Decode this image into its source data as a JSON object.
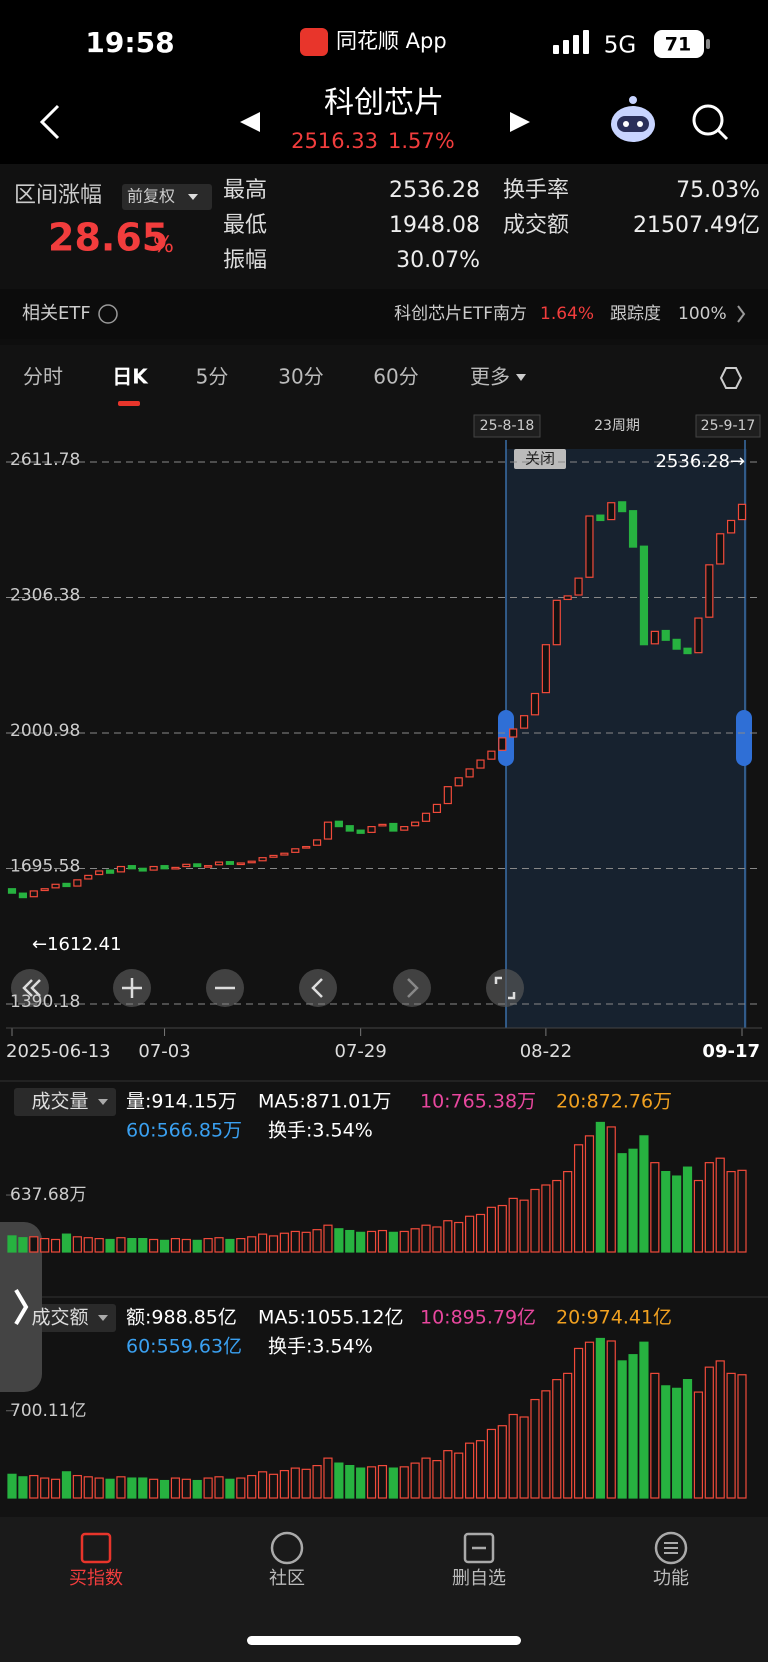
{
  "status": {
    "time": "19:58",
    "app": "同花顺 App",
    "network": "5G",
    "battery": "71"
  },
  "header": {
    "title": "科创芯片",
    "price": "2516.33",
    "change": "1.57%"
  },
  "stats": {
    "range_label": "区间涨幅",
    "adjust": "前复权",
    "range_value": "28.65",
    "range_unit": "%",
    "items": [
      {
        "label": "最高",
        "value": "2536.28"
      },
      {
        "label": "最低",
        "value": "1948.08"
      },
      {
        "label": "振幅",
        "value": "30.07%"
      },
      {
        "label": "换手率",
        "value": "75.03%"
      },
      {
        "label": "成交额",
        "value": "21507.49亿"
      }
    ]
  },
  "etf": {
    "label": "相关ETF",
    "name": "科创芯片ETF南方",
    "change": "1.64%",
    "track_label": "跟踪度",
    "track": "100%"
  },
  "tabs": [
    "分时",
    "日K",
    "5分",
    "30分",
    "60分",
    "更多"
  ],
  "range": {
    "start": "25-8-18",
    "period": "23周期",
    "end": "25-9-17",
    "close": "关闭"
  },
  "nav": [
    "买指数",
    "社区",
    "删自选",
    "功能"
  ],
  "chart_data": [
    {
      "type": "candlestick",
      "up_color": "#f04a3a",
      "down_color": "#27b240",
      "categories": [
        "2025-06-13",
        null,
        null,
        null,
        null,
        null,
        null,
        null,
        null,
        null,
        null,
        null,
        null,
        null,
        "07-03",
        null,
        null,
        null,
        null,
        null,
        null,
        null,
        null,
        null,
        null,
        null,
        null,
        null,
        null,
        null,
        null,
        null,
        "07-29",
        null,
        null,
        null,
        null,
        null,
        null,
        null,
        null,
        null,
        null,
        null,
        null,
        null,
        null,
        null,
        null,
        "08-22",
        null,
        null,
        null,
        null,
        null,
        null,
        null,
        null,
        null,
        null,
        null,
        null,
        null,
        null,
        null,
        null,
        null,
        "09-17"
      ],
      "open": [
        1650,
        1640,
        1632,
        1646,
        1652,
        1662,
        1656,
        1672,
        1682,
        1692,
        1688,
        1702,
        1696,
        1692,
        1702,
        1696,
        1700,
        1706,
        1701,
        1704,
        1711,
        1706,
        1709,
        1713,
        1721,
        1726,
        1732,
        1742,
        1748,
        1762,
        1802,
        1792,
        1782,
        1777,
        1792,
        1797,
        1782,
        1792,
        1802,
        1822,
        1842,
        1882,
        1902,
        1922,
        1942,
        1962,
        1992,
        2012,
        2042,
        2092,
        2200,
        2302,
        2312,
        2352,
        2492,
        2482,
        2522,
        2502,
        2422,
        2202,
        2232,
        2212,
        2192,
        2182,
        2262,
        2382,
        2452,
        2482
      ],
      "close": [
        1640,
        1630,
        1645,
        1650,
        1660,
        1655,
        1670,
        1680,
        1690,
        1685,
        1700,
        1695,
        1690,
        1700,
        1695,
        1698,
        1705,
        1700,
        1702,
        1710,
        1705,
        1708,
        1712,
        1720,
        1725,
        1730,
        1740,
        1745,
        1760,
        1800,
        1790,
        1780,
        1775,
        1790,
        1795,
        1780,
        1790,
        1800,
        1820,
        1840,
        1880,
        1900,
        1920,
        1940,
        1960,
        1990,
        2010,
        2040,
        2090,
        2200,
        2300,
        2310,
        2350,
        2490,
        2480,
        2520,
        2500,
        2420,
        2200,
        2230,
        2210,
        2190,
        2180,
        2260,
        2380,
        2450,
        2480,
        2516.33
      ],
      "ylim": [
        1390.18,
        2611.78
      ],
      "yticks": [
        2611.78,
        2306.38,
        2000.98,
        1695.58,
        1390.18
      ],
      "high_label": "2536.28→",
      "low_label": "←1612.41"
    },
    {
      "type": "bar",
      "title": "成交量",
      "ylim": [
        0,
        1500
      ],
      "yticks": [
        {
          "value": 637.68,
          "label": "637.68万"
        }
      ],
      "legend": [
        {
          "text": "量:914.15万",
          "color": "#ffffff"
        },
        {
          "text": "MA5:871.01万",
          "color": "#ffffff"
        },
        {
          "text": "10:765.38万",
          "color": "#e8479e"
        },
        {
          "text": "20:872.76万",
          "color": "#f0a020"
        },
        {
          "text": "60:566.85万",
          "color": "#3aa0f0"
        },
        {
          "text": "换手:3.54%",
          "color": "#ffffff"
        }
      ],
      "values": [
        180,
        160,
        170,
        150,
        140,
        200,
        170,
        160,
        150,
        140,
        160,
        150,
        150,
        140,
        130,
        150,
        140,
        130,
        150,
        160,
        140,
        150,
        170,
        200,
        180,
        210,
        230,
        220,
        250,
        300,
        260,
        240,
        220,
        230,
        240,
        220,
        230,
        260,
        300,
        280,
        350,
        330,
        400,
        420,
        500,
        520,
        600,
        580,
        700,
        750,
        800,
        900,
        1200,
        1300,
        1450,
        1400,
        1100,
        1150,
        1300,
        1000,
        900,
        850,
        950,
        800,
        1000,
        1050,
        900,
        914.15
      ]
    },
    {
      "type": "bar",
      "title": "成交额",
      "ylim": [
        0,
        1300
      ],
      "yticks": [
        {
          "value": 700.11,
          "label": "700.11亿"
        }
      ],
      "legend": [
        {
          "text": "额:988.85亿",
          "color": "#ffffff"
        },
        {
          "text": "MA5:1055.12亿",
          "color": "#ffffff"
        },
        {
          "text": "10:895.79亿",
          "color": "#e8479e"
        },
        {
          "text": "20:974.41亿",
          "color": "#f0a020"
        },
        {
          "text": "60:559.63亿",
          "color": "#3aa0f0"
        },
        {
          "text": "换手:3.54%",
          "color": "#ffffff"
        }
      ],
      "values": [
        190,
        170,
        180,
        160,
        150,
        210,
        180,
        170,
        160,
        150,
        170,
        160,
        160,
        150,
        140,
        160,
        150,
        140,
        160,
        170,
        150,
        160,
        180,
        210,
        190,
        220,
        240,
        230,
        260,
        320,
        280,
        260,
        240,
        250,
        260,
        240,
        250,
        280,
        320,
        300,
        380,
        360,
        440,
        460,
        550,
        580,
        670,
        650,
        790,
        860,
        950,
        1000,
        1200,
        1250,
        1280,
        1260,
        1100,
        1150,
        1250,
        1000,
        900,
        880,
        950,
        850,
        1050,
        1100,
        1000,
        988.85
      ]
    }
  ]
}
